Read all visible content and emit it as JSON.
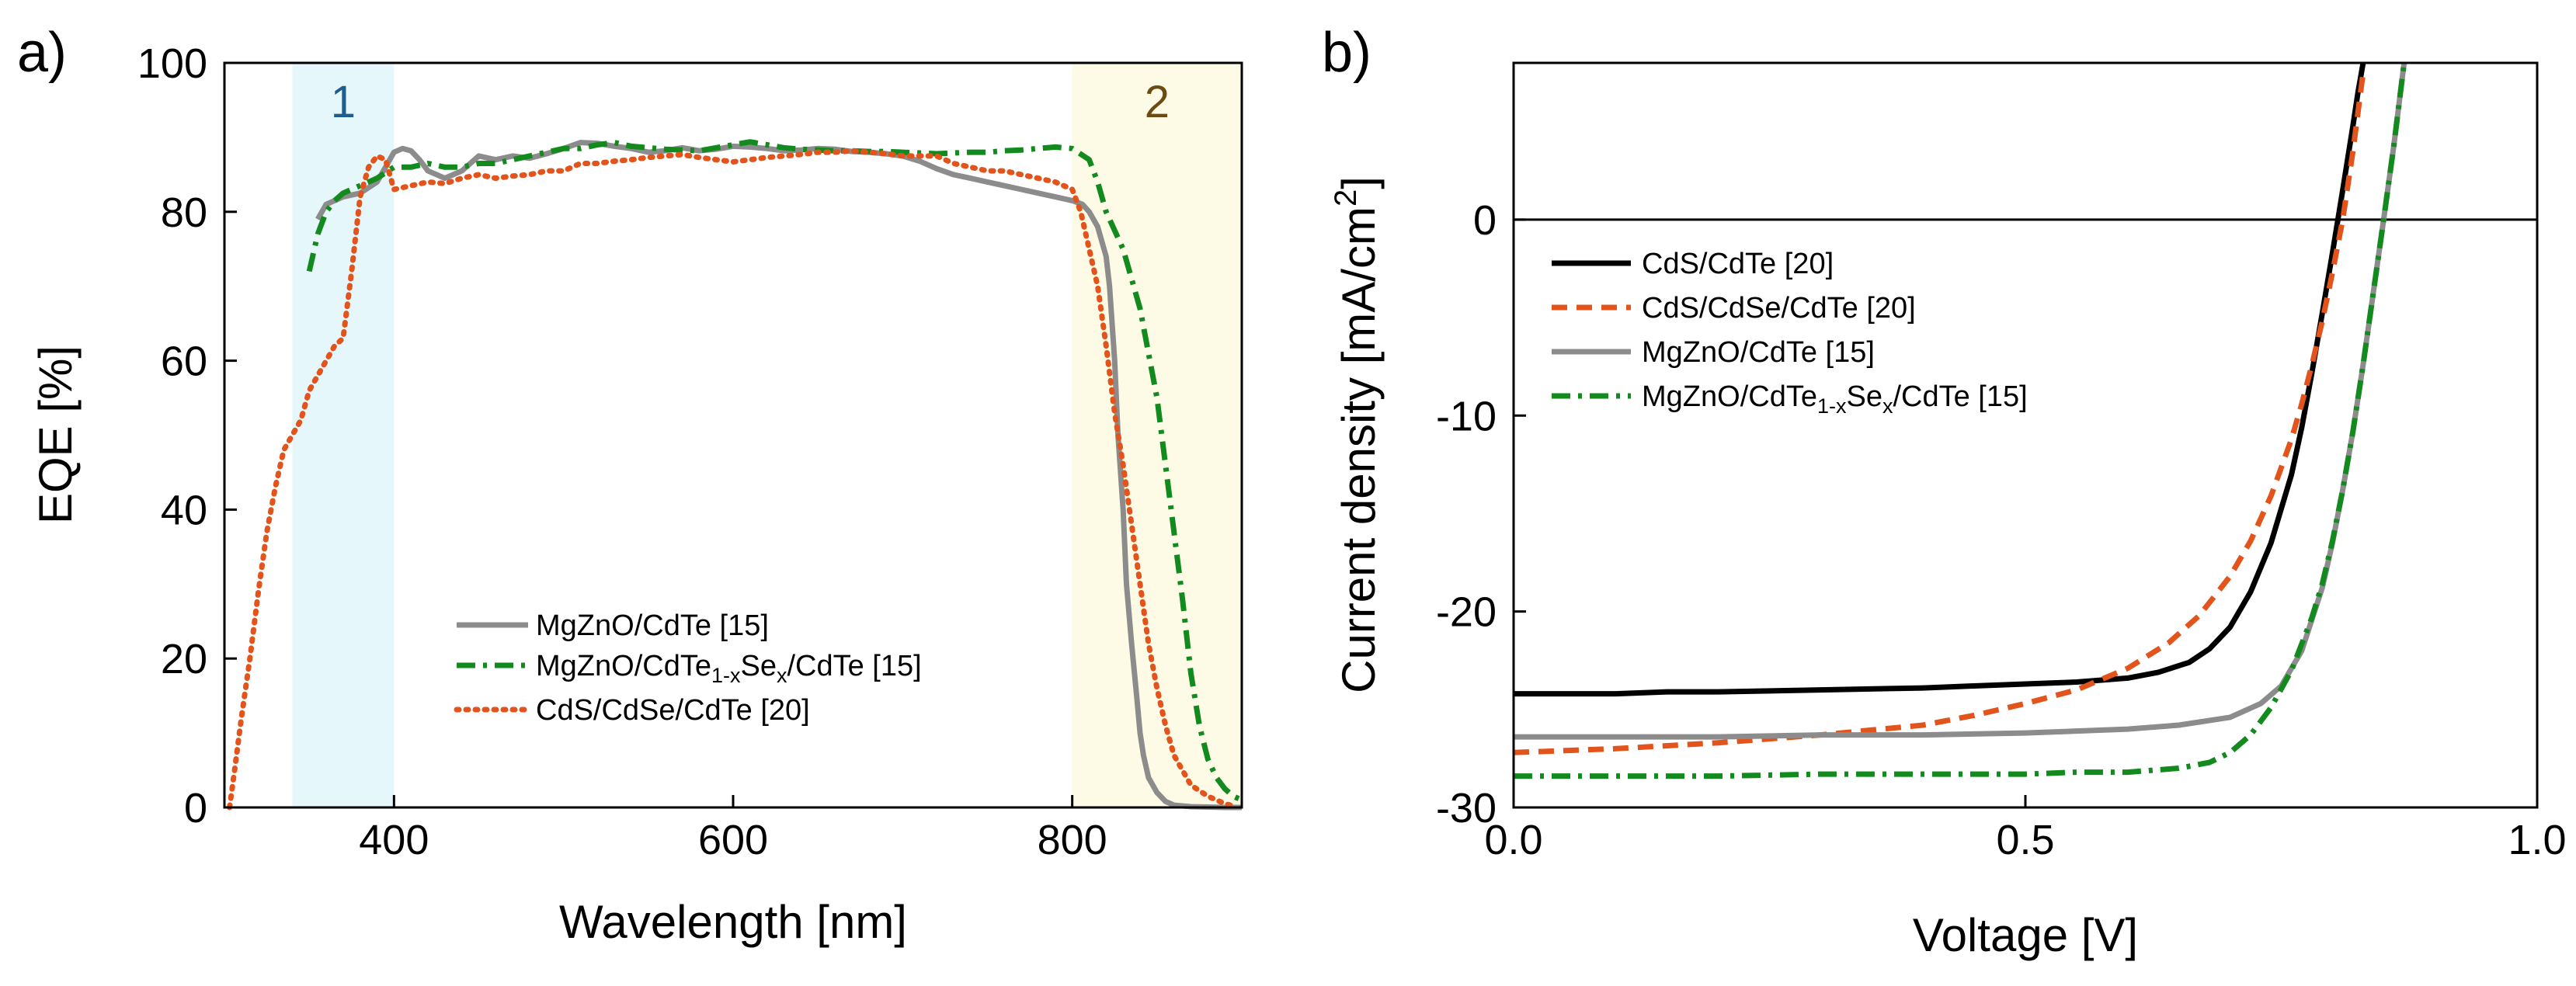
{
  "colors": {
    "cds_cdte": "#000000",
    "cds_cdse_cdte": "#E2541B",
    "mgzno_cdte": "#8C8C8C",
    "mgzno_cdtese_cdte": "#128A1E",
    "region1_fill": "#E6F7FB",
    "region2_fill": "#FDFBE6",
    "region1_text": "#1F5E8C",
    "region2_text": "#6B4B12"
  },
  "chart_data": [
    {
      "type": "line",
      "panel_label": "a)",
      "title": "",
      "xlabel": "Wavelength [nm]",
      "ylabel": "EQE [%]",
      "xlim": [
        300,
        900
      ],
      "ylim": [
        0,
        100
      ],
      "xticks": [
        400,
        600,
        800
      ],
      "yticks": [
        0,
        20,
        40,
        60,
        80,
        100
      ],
      "grid": false,
      "legend_position": "bottom-center",
      "regions": [
        {
          "label": "1",
          "x0": 340,
          "x1": 400
        },
        {
          "label": "2",
          "x0": 800,
          "x1": 900
        }
      ],
      "series": [
        {
          "name": "MgZnO/CdTe [15]",
          "color_key": "mgzno_cdte",
          "style": "solid",
          "x": [
            355,
            360,
            370,
            380,
            390,
            395,
            400,
            405,
            410,
            415,
            420,
            430,
            440,
            450,
            460,
            470,
            480,
            490,
            500,
            510,
            520,
            530,
            540,
            550,
            560,
            570,
            580,
            590,
            600,
            610,
            620,
            630,
            640,
            650,
            660,
            670,
            680,
            690,
            700,
            710,
            720,
            730,
            740,
            750,
            760,
            770,
            780,
            790,
            800,
            806,
            810,
            815,
            820,
            822,
            825,
            827,
            830,
            832,
            835,
            838,
            840,
            842,
            845,
            850,
            855,
            860,
            870,
            880,
            890,
            900
          ],
          "y": [
            79,
            81,
            82,
            82.5,
            84,
            86,
            88,
            88.5,
            88.2,
            87,
            85.5,
            84.5,
            85.5,
            87.5,
            87,
            87.5,
            87.2,
            87.8,
            88.5,
            89.3,
            89.2,
            88.8,
            88.5,
            88,
            88.2,
            88.6,
            88.2,
            88.4,
            88.8,
            88.7,
            88.5,
            88.2,
            88.3,
            88.5,
            88.4,
            88.1,
            88,
            87.8,
            87.5,
            86.8,
            85.8,
            85,
            84.5,
            84,
            83.5,
            83,
            82.5,
            82,
            81.5,
            81,
            80,
            78,
            74,
            70,
            60,
            50,
            40,
            30,
            22,
            15,
            10,
            7,
            4,
            2,
            0.8,
            0.3,
            0.1,
            0.05,
            0,
            0
          ]
        },
        {
          "name": "MgZnO/CdTe1-xSex/CdTe [15]",
          "legend_parts": {
            "main": "MgZnO/CdTe",
            "sub1": "1-x",
            "mid": "Se",
            "sub2": "x",
            "tail": "/CdTe [15]"
          },
          "color_key": "mgzno_cdtese_cdte",
          "style": "dashdot",
          "x": [
            350,
            355,
            360,
            365,
            370,
            380,
            390,
            400,
            410,
            420,
            430,
            440,
            450,
            460,
            470,
            480,
            490,
            500,
            510,
            520,
            530,
            540,
            550,
            560,
            570,
            580,
            590,
            600,
            610,
            620,
            630,
            640,
            650,
            660,
            670,
            680,
            690,
            700,
            710,
            720,
            730,
            740,
            750,
            760,
            770,
            780,
            790,
            800,
            810,
            815,
            820,
            830,
            840,
            850,
            860,
            865,
            870,
            875,
            880,
            885,
            890,
            895,
            900
          ],
          "y": [
            72,
            77,
            80,
            81.5,
            82.5,
            83.5,
            84.5,
            86,
            86,
            86.5,
            86,
            86,
            86.5,
            86.5,
            87,
            87.5,
            88,
            88.5,
            88.5,
            89,
            89.3,
            88.8,
            88.6,
            88.4,
            88.3,
            88.2,
            88.6,
            89,
            89.4,
            89,
            88.6,
            88.4,
            88.3,
            88.2,
            88.2,
            88.1,
            88.1,
            88,
            87.9,
            87.8,
            87.9,
            88,
            88,
            88.2,
            88.3,
            88.5,
            88.7,
            88.5,
            87,
            84,
            80,
            75,
            67,
            55,
            37,
            28,
            18,
            11,
            6.5,
            4,
            2.5,
            1.5,
            1
          ]
        },
        {
          "name": "CdS/CdSe/CdTe [20]",
          "color_key": "cds_cdse_cdte",
          "style": "dotted",
          "x": [
            303,
            306,
            310,
            315,
            320,
            325,
            330,
            335,
            340,
            345,
            350,
            355,
            360,
            365,
            370,
            375,
            380,
            385,
            390,
            395,
            400,
            410,
            420,
            430,
            440,
            450,
            460,
            470,
            480,
            490,
            500,
            510,
            520,
            530,
            540,
            550,
            560,
            570,
            580,
            590,
            600,
            610,
            620,
            630,
            640,
            650,
            660,
            670,
            680,
            690,
            700,
            710,
            720,
            730,
            740,
            750,
            760,
            770,
            780,
            790,
            800,
            805,
            810,
            815,
            820,
            825,
            830,
            835,
            840,
            845,
            850,
            855,
            860,
            870,
            880,
            890,
            895
          ],
          "y": [
            0,
            5,
            12,
            20,
            29,
            37,
            43,
            48,
            50,
            52,
            56,
            58,
            60,
            62,
            63,
            72,
            82,
            86,
            87.5,
            87,
            83,
            83.5,
            84,
            83.8,
            84.5,
            85,
            84.5,
            84.8,
            85,
            85.5,
            85.5,
            86.5,
            86.5,
            86.8,
            87,
            87.3,
            87.5,
            87.7,
            87.3,
            87,
            86.7,
            87,
            87.3,
            87.5,
            87.7,
            88,
            88,
            88.2,
            88,
            87.8,
            87.5,
            87.5,
            87.5,
            86.5,
            86,
            85.5,
            85.5,
            85,
            84.5,
            84,
            83,
            80,
            75,
            70,
            62,
            53,
            46,
            38,
            30,
            22,
            16,
            11,
            7,
            3,
            1.5,
            0.5,
            0.2
          ]
        }
      ]
    },
    {
      "type": "line",
      "panel_label": "b)",
      "title": "",
      "xlabel": "Voltage [V]",
      "ylabel": "Current density [mA/cm2]",
      "ylabel_parts": {
        "main": "Current density [mA/cm",
        "sup": "2",
        "tail": "]"
      },
      "xlim": [
        0,
        1.0
      ],
      "ylim": [
        -30,
        8
      ],
      "xticks": [
        0.0,
        0.5,
        1.0
      ],
      "xtick_labels": [
        "0.0",
        "0.5",
        "1.0"
      ],
      "yticks": [
        -30,
        -20,
        -10,
        0
      ],
      "ytick_labels": [
        "-30",
        "-20",
        "-10",
        "0"
      ],
      "zero_line": true,
      "grid": false,
      "legend_position": "top-left",
      "series": [
        {
          "name": "CdS/CdTe [20]",
          "color_key": "cds_cdte",
          "style": "solid",
          "x": [
            0.0,
            0.1,
            0.15,
            0.2,
            0.3,
            0.4,
            0.45,
            0.5,
            0.55,
            0.6,
            0.63,
            0.66,
            0.68,
            0.7,
            0.72,
            0.74,
            0.76,
            0.77,
            0.78,
            0.79,
            0.8,
            0.81,
            0.82,
            0.825,
            0.83
          ],
          "y": [
            -24.2,
            -24.2,
            -24.1,
            -24.1,
            -24.0,
            -23.9,
            -23.8,
            -23.7,
            -23.6,
            -23.4,
            -23.1,
            -22.6,
            -21.9,
            -20.8,
            -19.0,
            -16.5,
            -13.0,
            -10.6,
            -7.8,
            -4.8,
            -1.7,
            1.5,
            4.8,
            6.5,
            8.0
          ]
        },
        {
          "name": "CdS/CdSe/CdTe [20]",
          "color_key": "cds_cdse_cdte",
          "style": "dashed",
          "x": [
            0.0,
            0.1,
            0.2,
            0.3,
            0.4,
            0.45,
            0.5,
            0.55,
            0.6,
            0.64,
            0.67,
            0.7,
            0.72,
            0.74,
            0.76,
            0.77,
            0.78,
            0.79,
            0.8,
            0.81,
            0.82,
            0.83
          ],
          "y": [
            -27.2,
            -27.0,
            -26.7,
            -26.3,
            -25.8,
            -25.3,
            -24.7,
            -24.0,
            -22.9,
            -21.6,
            -20.2,
            -18.2,
            -16.4,
            -14.1,
            -11.2,
            -9.4,
            -7.4,
            -5.2,
            -2.7,
            0.0,
            3.5,
            7.5
          ]
        },
        {
          "name": "MgZnO/CdTe [15]",
          "color_key": "mgzno_cdte",
          "style": "solid",
          "x": [
            0.0,
            0.1,
            0.2,
            0.3,
            0.4,
            0.5,
            0.55,
            0.6,
            0.65,
            0.7,
            0.73,
            0.75,
            0.77,
            0.79,
            0.8,
            0.81,
            0.82,
            0.83,
            0.84,
            0.85,
            0.86,
            0.87
          ],
          "y": [
            -26.4,
            -26.4,
            -26.4,
            -26.3,
            -26.3,
            -26.2,
            -26.1,
            -26.0,
            -25.8,
            -25.4,
            -24.7,
            -23.8,
            -22.0,
            -18.8,
            -16.5,
            -13.8,
            -10.8,
            -7.4,
            -3.7,
            0.0,
            3.8,
            8.0
          ]
        },
        {
          "name": "MgZnO/CdTe1-xSex/CdTe [15]",
          "legend_parts": {
            "main": "MgZnO/CdTe",
            "sub1": "1-x",
            "mid": "Se",
            "sub2": "x",
            "tail": "/CdTe [15]"
          },
          "color_key": "mgzno_cdtese_cdte",
          "style": "dashdot",
          "x": [
            0.0,
            0.1,
            0.2,
            0.3,
            0.4,
            0.5,
            0.55,
            0.6,
            0.65,
            0.68,
            0.7,
            0.72,
            0.74,
            0.76,
            0.78,
            0.79,
            0.8,
            0.81,
            0.82,
            0.83,
            0.84,
            0.85,
            0.86,
            0.87
          ],
          "y": [
            -28.4,
            -28.4,
            -28.4,
            -28.3,
            -28.3,
            -28.3,
            -28.2,
            -28.2,
            -28.0,
            -27.7,
            -27.2,
            -26.3,
            -24.9,
            -23.0,
            -20.3,
            -18.6,
            -16.4,
            -13.8,
            -10.8,
            -7.4,
            -3.7,
            0.0,
            3.8,
            8.0
          ]
        }
      ]
    }
  ]
}
